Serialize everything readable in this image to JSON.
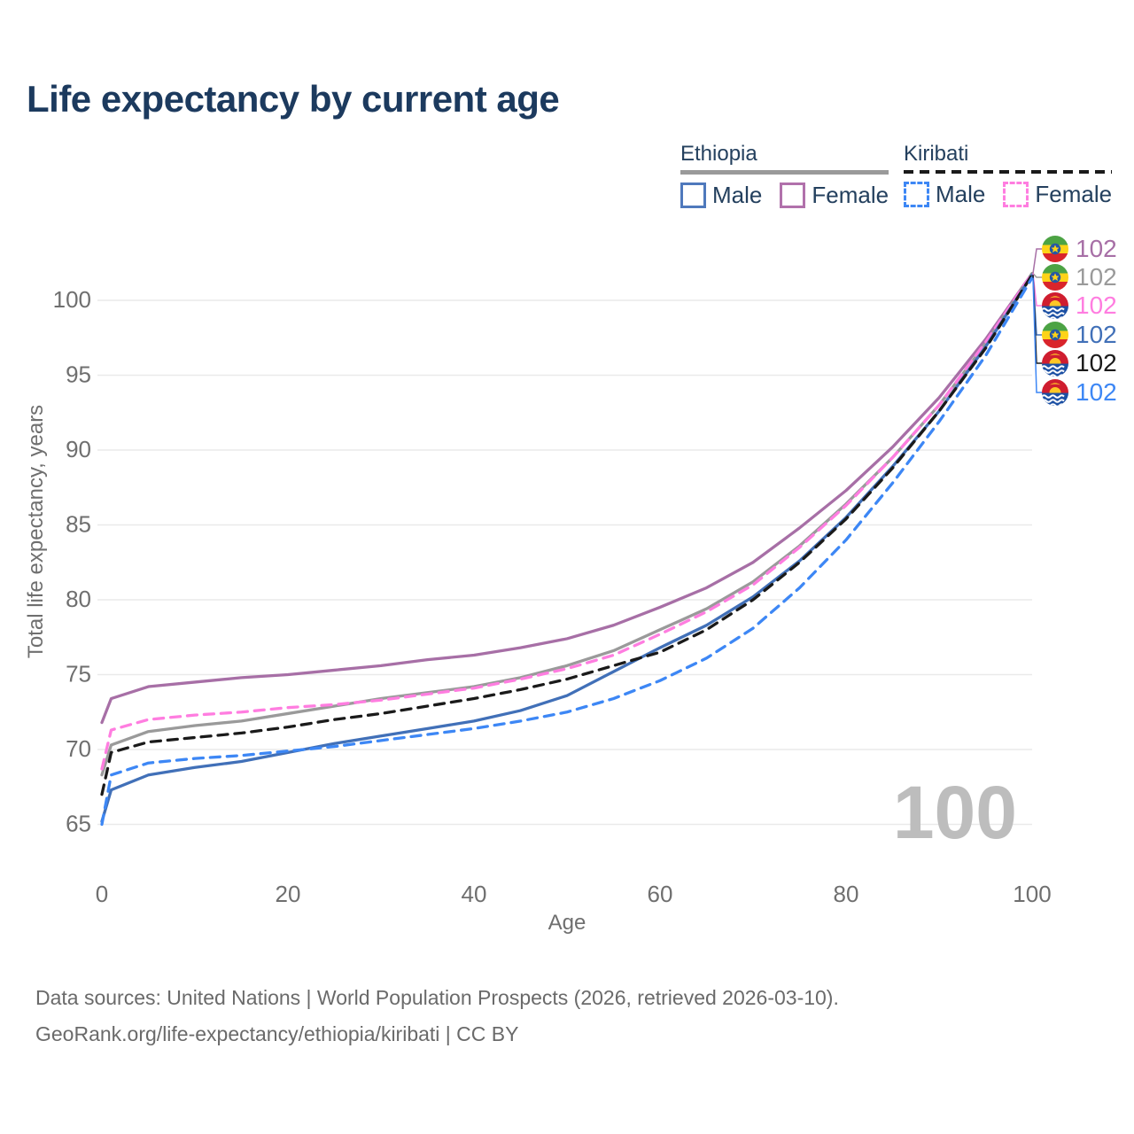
{
  "title": "Life expectancy by current age",
  "watermark": "100",
  "legend": {
    "groups": [
      {
        "country": "Ethiopia",
        "line_style": "solid",
        "items": [
          {
            "label": "Male",
            "color": "#4f79bc",
            "dashed": false
          },
          {
            "label": "Female",
            "color": "#b171ab",
            "dashed": false
          }
        ]
      },
      {
        "country": "Kiribati",
        "line_style": "dashed",
        "items": [
          {
            "label": "Male",
            "color": "#3d87f5",
            "dashed": true
          },
          {
            "label": "Female",
            "color": "#ff7de0",
            "dashed": true
          }
        ]
      }
    ]
  },
  "chart_data": {
    "type": "line",
    "title": "Life expectancy by current age",
    "xlabel": "Age",
    "ylabel": "Total life expectancy, years",
    "xlim": [
      0,
      100
    ],
    "ylim": [
      63,
      103
    ],
    "x_ticks": [
      0,
      20,
      40,
      60,
      80,
      100
    ],
    "y_ticks": [
      65,
      70,
      75,
      80,
      85,
      90,
      95,
      100
    ],
    "grid": "horizontal",
    "legend_position": "top-right",
    "x": [
      0,
      1,
      5,
      10,
      15,
      20,
      25,
      30,
      35,
      40,
      45,
      50,
      55,
      60,
      65,
      70,
      75,
      80,
      85,
      90,
      95,
      100
    ],
    "series": [
      {
        "name": "Ethiopia Female",
        "country": "Ethiopia",
        "sex": "Female",
        "color": "#a76fa6",
        "dashed": false,
        "flag": "ethiopia",
        "end_label": "102",
        "values": [
          71.8,
          73.4,
          74.2,
          74.5,
          74.8,
          75.0,
          75.3,
          75.6,
          76.0,
          76.3,
          76.8,
          77.4,
          78.3,
          79.5,
          80.8,
          82.5,
          84.8,
          87.3,
          90.2,
          93.5,
          97.4,
          101.8
        ]
      },
      {
        "name": "Ethiopia (both sexes)",
        "country": "Ethiopia",
        "sex": "Total",
        "color": "#9a9a9a",
        "dashed": false,
        "flag": "ethiopia",
        "end_label": "102",
        "values": [
          68.3,
          70.3,
          71.2,
          71.6,
          71.9,
          72.4,
          72.9,
          73.4,
          73.8,
          74.2,
          74.8,
          75.6,
          76.6,
          78.0,
          79.4,
          81.2,
          83.6,
          86.4,
          89.5,
          93.0,
          97.1,
          101.8
        ]
      },
      {
        "name": "Kiribati Female",
        "country": "Kiribati",
        "sex": "Female",
        "color": "#ff7de0",
        "dashed": true,
        "flag": "kiribati",
        "end_label": "102",
        "values": [
          68.7,
          71.3,
          72.0,
          72.3,
          72.5,
          72.8,
          73.0,
          73.3,
          73.7,
          74.1,
          74.7,
          75.4,
          76.3,
          77.7,
          79.2,
          81.0,
          83.5,
          86.3,
          89.5,
          93.0,
          97.2,
          101.8
        ]
      },
      {
        "name": "Ethiopia Male",
        "country": "Ethiopia",
        "sex": "Male",
        "color": "#4170b8",
        "dashed": false,
        "flag": "ethiopia",
        "end_label": "102",
        "values": [
          65.2,
          67.3,
          68.3,
          68.8,
          69.2,
          69.8,
          70.4,
          70.9,
          71.4,
          71.9,
          72.6,
          73.6,
          75.2,
          76.8,
          78.3,
          80.2,
          82.6,
          85.5,
          88.9,
          92.6,
          96.9,
          101.7
        ]
      },
      {
        "name": "Kiribati (both sexes)",
        "country": "Kiribati",
        "sex": "Total",
        "color": "#1a1a1a",
        "dashed": true,
        "flag": "kiribati",
        "end_label": "102",
        "values": [
          67.0,
          69.8,
          70.5,
          70.8,
          71.1,
          71.5,
          72.0,
          72.4,
          72.9,
          73.4,
          74.0,
          74.7,
          75.6,
          76.5,
          78.0,
          80.0,
          82.5,
          85.4,
          88.8,
          92.6,
          96.8,
          101.7
        ]
      },
      {
        "name": "Kiribati Male",
        "country": "Kiribati",
        "sex": "Male",
        "color": "#3d87f5",
        "dashed": true,
        "flag": "kiribati",
        "end_label": "102",
        "values": [
          65.0,
          68.3,
          69.1,
          69.4,
          69.6,
          69.9,
          70.2,
          70.6,
          71.0,
          71.4,
          71.9,
          72.5,
          73.4,
          74.6,
          76.1,
          78.1,
          80.8,
          84.0,
          87.8,
          91.9,
          96.3,
          101.5
        ]
      }
    ]
  },
  "footer": {
    "line1": "Data sources: United Nations | World Population Prospects (2026, retrieved 2026-03-10).",
    "line2": "GeoRank.org/life-expectancy/ethiopia/kiribati | CC BY"
  }
}
